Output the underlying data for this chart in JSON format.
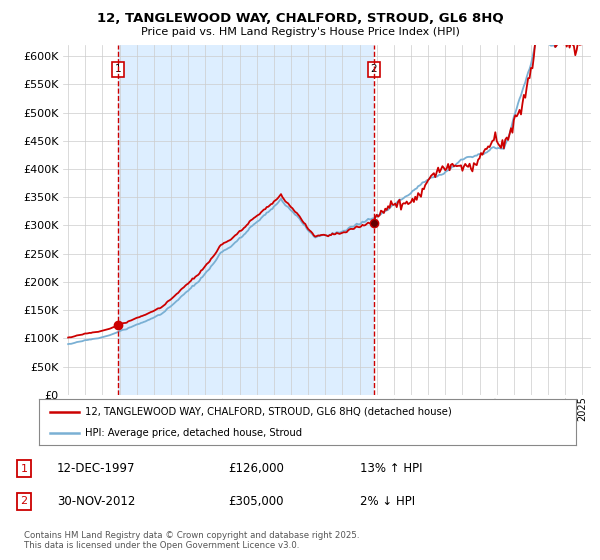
{
  "title": "12, TANGLEWOOD WAY, CHALFORD, STROUD, GL6 8HQ",
  "subtitle": "Price paid vs. HM Land Registry's House Price Index (HPI)",
  "legend_line1": "12, TANGLEWOOD WAY, CHALFORD, STROUD, GL6 8HQ (detached house)",
  "legend_line2": "HPI: Average price, detached house, Stroud",
  "annotation1_label": "1",
  "annotation1_date": "12-DEC-1997",
  "annotation1_price": 126000,
  "annotation1_hpi": "13% ↑ HPI",
  "annotation2_label": "2",
  "annotation2_date": "30-NOV-2012",
  "annotation2_price": 305000,
  "annotation2_hpi": "2% ↓ HPI",
  "footer": "Contains HM Land Registry data © Crown copyright and database right 2025.\nThis data is licensed under the Open Government Licence v3.0.",
  "price_color": "#cc0000",
  "hpi_color": "#7ab0d4",
  "annotation_color": "#cc0000",
  "shade_color": "#ddeeff",
  "ylim": [
    0,
    620000
  ],
  "yticks": [
    0,
    50000,
    100000,
    150000,
    200000,
    250000,
    300000,
    350000,
    400000,
    450000,
    500000,
    550000,
    600000
  ],
  "bg_color": "#ffffff",
  "grid_color": "#cccccc",
  "xmin": 1994.7,
  "xmax": 2025.5
}
